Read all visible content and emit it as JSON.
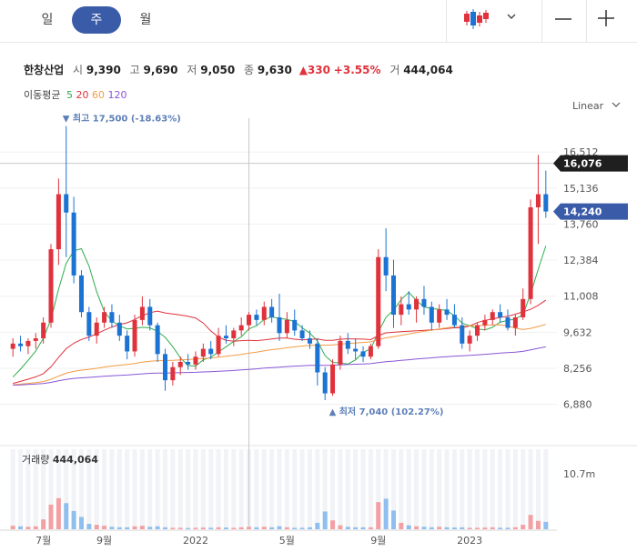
{
  "periods": [
    "일",
    "주",
    "월"
  ],
  "active_period": "주",
  "quote": {
    "name": "한창산업",
    "open_label": "시",
    "open": "9,390",
    "high_label": "고",
    "high": "9,690",
    "low_label": "저",
    "low": "9,050",
    "close_label": "종",
    "close": "9,630",
    "change": "▲330",
    "change_pct": "+3.55%",
    "volume_label": "거",
    "volume": "444,064"
  },
  "ma": {
    "label": "이동평균",
    "periods": [
      "5",
      "20",
      "60",
      "120"
    ],
    "colors": [
      "#2fae4d",
      "#e0323c",
      "#f39b45",
      "#8a56d6"
    ]
  },
  "scale_label": "Linear",
  "colors": {
    "up": "#e0323c",
    "down": "#1b73d3",
    "up_vol": "#f3a0a4",
    "down_vol": "#8fbfee",
    "accent": "#3a5ba8"
  },
  "chart_data": {
    "type": "candlestick",
    "interval": "weekly",
    "y_ticks": [
      6880,
      8256,
      9632,
      11008,
      12384,
      13760,
      15136,
      16512
    ],
    "y_tick_labels": [
      "6,880",
      "8,256",
      "9,632",
      "11,008",
      "12,384",
      "13,760",
      "15,136",
      "16,512"
    ],
    "ylim": [
      6000,
      17800
    ],
    "x_tick_labels": [
      "7월",
      "9월",
      "2022",
      "5월",
      "9월",
      "2023"
    ],
    "x_tick_index": [
      4,
      12,
      24,
      36,
      48,
      60
    ],
    "crosshair": {
      "price": 16076,
      "price_label": "16,076",
      "index": 31
    },
    "last_price": {
      "value": 14240,
      "label": "14,240"
    },
    "annotations": [
      {
        "type": "high",
        "text": "▼ 최고 17,500 (-18.63%)",
        "value": 17500,
        "index": 7
      },
      {
        "type": "low",
        "text": "▲ 최저 7,040 (102.27%)",
        "value": 7040,
        "index": 42
      }
    ],
    "volume_label": "거래량",
    "volume_value": "444,064",
    "volume_axis_label": "10.7m",
    "volume_axis_value": 10700000,
    "candles": [
      [
        9000,
        9400,
        8700,
        9200,
        700000
      ],
      [
        9200,
        9500,
        8900,
        9100,
        600000
      ],
      [
        9100,
        9400,
        8800,
        9300,
        500000
      ],
      [
        9300,
        9600,
        9000,
        9400,
        600000
      ],
      [
        9400,
        10200,
        9200,
        10000,
        2000000
      ],
      [
        10000,
        13000,
        9800,
        12800,
        5000000
      ],
      [
        12800,
        15500,
        12200,
        14900,
        6300000
      ],
      [
        14900,
        17500,
        12500,
        14200,
        5300000
      ],
      [
        14200,
        14800,
        11500,
        11800,
        3700000
      ],
      [
        11800,
        12000,
        10200,
        10400,
        2500000
      ],
      [
        10400,
        10600,
        9300,
        9500,
        1100000
      ],
      [
        9500,
        10200,
        9200,
        10000,
        900000
      ],
      [
        10000,
        10600,
        9800,
        10400,
        700000
      ],
      [
        10400,
        10700,
        9800,
        10000,
        500000
      ],
      [
        10000,
        10300,
        9300,
        9500,
        400000
      ],
      [
        9500,
        9700,
        8600,
        8900,
        400000
      ],
      [
        8900,
        10300,
        8700,
        10100,
        600000
      ],
      [
        10100,
        11000,
        9900,
        10600,
        700000
      ],
      [
        10600,
        10900,
        9700,
        9900,
        500000
      ],
      [
        9900,
        10000,
        8500,
        8800,
        600000
      ],
      [
        8800,
        9000,
        7400,
        7800,
        400000
      ],
      [
        7800,
        8500,
        7600,
        8300,
        300000
      ],
      [
        8300,
        8700,
        8000,
        8500,
        300000
      ],
      [
        8500,
        8800,
        8200,
        8400,
        250000
      ],
      [
        8400,
        8900,
        8200,
        8700,
        300000
      ],
      [
        8700,
        9200,
        8500,
        9000,
        350000
      ],
      [
        9000,
        9300,
        8600,
        8800,
        300000
      ],
      [
        8800,
        9800,
        8700,
        9500,
        400000
      ],
      [
        9500,
        9900,
        9200,
        9400,
        350000
      ],
      [
        9400,
        9800,
        9100,
        9700,
        300000
      ],
      [
        9700,
        10200,
        9500,
        9900,
        400000
      ],
      [
        9900,
        10400,
        9700,
        10300,
        500000
      ],
      [
        10300,
        10500,
        9900,
        10100,
        400000
      ],
      [
        10100,
        10800,
        9900,
        10600,
        500000
      ],
      [
        10600,
        10900,
        10000,
        10200,
        400000
      ],
      [
        10200,
        11100,
        9300,
        9600,
        600000
      ],
      [
        9600,
        10400,
        9400,
        10100,
        400000
      ],
      [
        10100,
        10500,
        9500,
        9700,
        300000
      ],
      [
        9700,
        9900,
        9300,
        9400,
        300000
      ],
      [
        9400,
        9700,
        9000,
        9200,
        400000
      ],
      [
        9200,
        9400,
        7600,
        8100,
        1300000
      ],
      [
        8100,
        8300,
        7040,
        7300,
        3600000
      ],
      [
        7300,
        8600,
        7200,
        8400,
        1800000
      ],
      [
        8400,
        9500,
        8200,
        9300,
        800000
      ],
      [
        9300,
        9600,
        8800,
        9000,
        500000
      ],
      [
        9000,
        9400,
        8600,
        8900,
        400000
      ],
      [
        8900,
        9100,
        8500,
        8700,
        400000
      ],
      [
        8700,
        9200,
        8600,
        9100,
        400000
      ],
      [
        9100,
        12800,
        9000,
        12500,
        5500000
      ],
      [
        12500,
        13600,
        11200,
        11800,
        6200000
      ],
      [
        11800,
        12400,
        9800,
        10300,
        3800000
      ],
      [
        10300,
        11000,
        9900,
        10700,
        1300000
      ],
      [
        10700,
        11200,
        10300,
        10500,
        800000
      ],
      [
        10500,
        11000,
        10000,
        10900,
        600000
      ],
      [
        10900,
        11400,
        10300,
        10600,
        500000
      ],
      [
        10600,
        10800,
        9700,
        10000,
        400000
      ],
      [
        10000,
        10700,
        9800,
        10500,
        500000
      ],
      [
        10500,
        10900,
        10100,
        10300,
        400000
      ],
      [
        10300,
        10700,
        9800,
        9900,
        350000
      ],
      [
        9900,
        10200,
        9000,
        9200,
        400000
      ],
      [
        9200,
        9700,
        8900,
        9500,
        300000
      ],
      [
        9500,
        10000,
        9300,
        9900,
        300000
      ],
      [
        9900,
        10300,
        9700,
        10100,
        350000
      ],
      [
        10100,
        10500,
        9900,
        10400,
        400000
      ],
      [
        10400,
        10700,
        10000,
        10200,
        300000
      ],
      [
        10200,
        10500,
        9700,
        9800,
        300000
      ],
      [
        9800,
        10300,
        9500,
        10200,
        400000
      ],
      [
        10200,
        11300,
        10100,
        10900,
        900000
      ],
      [
        10900,
        14700,
        10700,
        14400,
        2900000
      ],
      [
        14400,
        16400,
        13000,
        14900,
        1700000
      ],
      [
        14900,
        15800,
        14000,
        14240,
        1500000
      ]
    ]
  }
}
